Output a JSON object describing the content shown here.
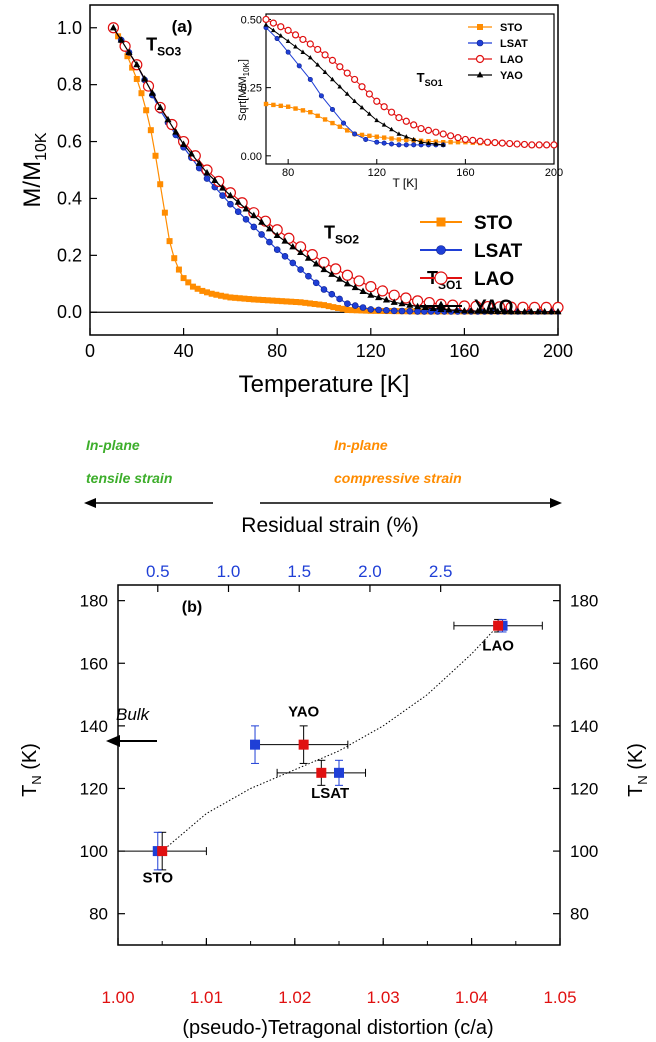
{
  "chart_data": [
    {
      "panel": "(a)",
      "type": "line",
      "xlabel": "Temperature [K]",
      "ylabel": "M/M",
      "ylabel_sub": "10K",
      "xlim": [
        0,
        200
      ],
      "ylim": [
        -0.08,
        1.08
      ],
      "xticks": [
        "0",
        "40",
        "80",
        "120",
        "160",
        "200"
      ],
      "yticks": [
        "0.0",
        "0.2",
        "0.4",
        "0.6",
        "0.8",
        "1.0"
      ],
      "zero_line": true,
      "legend_position": "right",
      "annotations": [
        {
          "main": "T",
          "sub": "SO3",
          "x": 24,
          "y": 0.92
        },
        {
          "main": "T",
          "sub": "SO2",
          "x": 100,
          "y": 0.26
        },
        {
          "main": "T",
          "sub": "SO1",
          "x": 144,
          "y": 0.1
        }
      ],
      "series": [
        {
          "name": "STO",
          "color": "#ff8c00",
          "marker": "square",
          "x": [
            10,
            12,
            14,
            16,
            18,
            20,
            22,
            24,
            26,
            28,
            30,
            32,
            34,
            36,
            38,
            40,
            44,
            48,
            52,
            56,
            60,
            70,
            80,
            90,
            100,
            104,
            108,
            110,
            120,
            140,
            160,
            180,
            200
          ],
          "y": [
            1.0,
            0.97,
            0.94,
            0.9,
            0.86,
            0.82,
            0.77,
            0.71,
            0.64,
            0.55,
            0.45,
            0.35,
            0.25,
            0.19,
            0.15,
            0.12,
            0.09,
            0.075,
            0.065,
            0.058,
            0.052,
            0.045,
            0.04,
            0.035,
            0.025,
            0.018,
            0.012,
            0.008,
            0.005,
            0.003,
            0.003,
            0.003,
            0.003
          ]
        },
        {
          "name": "LSAT",
          "color": "#1f3fd6",
          "marker": "circle",
          "x": [
            10,
            20,
            30,
            40,
            50,
            60,
            70,
            80,
            90,
            100,
            110,
            120,
            130,
            140,
            160,
            180,
            200
          ],
          "y": [
            1.0,
            0.87,
            0.71,
            0.58,
            0.47,
            0.38,
            0.3,
            0.22,
            0.15,
            0.08,
            0.03,
            0.01,
            0.005,
            0.003,
            0.003,
            0.003,
            0.003
          ]
        },
        {
          "name": "LAO",
          "color": "#e01010",
          "marker": "open-circle",
          "x": [
            10,
            20,
            30,
            40,
            50,
            60,
            70,
            80,
            90,
            100,
            110,
            120,
            130,
            140,
            150,
            160,
            170,
            180,
            190,
            200
          ],
          "y": [
            1.0,
            0.87,
            0.72,
            0.6,
            0.5,
            0.42,
            0.35,
            0.29,
            0.23,
            0.175,
            0.13,
            0.09,
            0.06,
            0.04,
            0.028,
            0.022,
            0.02,
            0.018,
            0.017,
            0.017
          ]
        },
        {
          "name": "YAO",
          "color": "#000000",
          "marker": "triangle",
          "x": [
            10,
            20,
            30,
            40,
            50,
            60,
            70,
            80,
            90,
            100,
            110,
            120,
            130,
            140,
            150,
            160,
            180,
            200
          ],
          "y": [
            1.0,
            0.87,
            0.72,
            0.59,
            0.49,
            0.41,
            0.34,
            0.27,
            0.21,
            0.15,
            0.1,
            0.06,
            0.035,
            0.02,
            0.01,
            0.005,
            0.002,
            0.002
          ]
        }
      ]
    },
    {
      "panel": "inset",
      "type": "line",
      "xlabel": "T [K]",
      "ylabel": "Sqrt[M/M",
      "ylabel_sub": "10K",
      "ylabel_tail": "]",
      "xlim": [
        70,
        200
      ],
      "ylim": [
        -0.03,
        0.52
      ],
      "xticks": [
        "80",
        "120",
        "160",
        "200"
      ],
      "yticks": [
        "0.00",
        "0.25",
        "0.50"
      ],
      "legend_position": "top-right",
      "annotations": [
        {
          "main": "T",
          "sub": "SO1",
          "x": 138,
          "y": 0.27
        }
      ],
      "series": [
        {
          "name": "STO",
          "color": "#ff8c00",
          "marker": "square",
          "x": [
            70,
            80,
            90,
            100,
            110,
            120,
            130,
            140,
            150,
            160,
            170,
            180,
            190,
            200
          ],
          "y": [
            0.19,
            0.18,
            0.16,
            0.12,
            0.08,
            0.07,
            0.06,
            0.055,
            0.05,
            0.05,
            0.045,
            0.045,
            0.04,
            0.04
          ]
        },
        {
          "name": "LSAT",
          "color": "#1f3fd6",
          "marker": "circle",
          "x": [
            70,
            75,
            80,
            85,
            90,
            95,
            100,
            105,
            110,
            115,
            120,
            130,
            140,
            150
          ],
          "y": [
            0.47,
            0.43,
            0.38,
            0.33,
            0.28,
            0.22,
            0.17,
            0.12,
            0.08,
            0.06,
            0.05,
            0.04,
            0.04,
            0.04
          ]
        },
        {
          "name": "LAO",
          "color": "#e01010",
          "marker": "open-circle",
          "x": [
            70,
            80,
            90,
            100,
            110,
            120,
            130,
            140,
            150,
            160,
            170,
            180,
            190,
            200
          ],
          "y": [
            0.5,
            0.46,
            0.41,
            0.35,
            0.28,
            0.2,
            0.14,
            0.1,
            0.08,
            0.06,
            0.05,
            0.045,
            0.04,
            0.04
          ]
        },
        {
          "name": "YAO",
          "color": "#000000",
          "marker": "triangle",
          "x": [
            70,
            80,
            90,
            100,
            110,
            120,
            130,
            140,
            150
          ],
          "y": [
            0.48,
            0.42,
            0.36,
            0.28,
            0.2,
            0.13,
            0.08,
            0.05,
            0.04
          ]
        }
      ]
    },
    {
      "panel": "(b)",
      "type": "scatter",
      "xlabel": "(pseudo-)Tetragonal distortion (c/a)",
      "xlabel_color": "#e01010",
      "top_xlabel": "Residual strain (%)",
      "top_xlabel_color": "#1f3fd6",
      "ylabel": "T",
      "ylabel_sub": "N",
      "ylabel_tail": " (K)",
      "xlim": [
        1.0,
        1.05
      ],
      "ylim": [
        70,
        185
      ],
      "xticks": [
        "1.00",
        "1.01",
        "1.02",
        "1.03",
        "1.04",
        "1.05"
      ],
      "top_xticks": [
        {
          "label": "0.5",
          "x": 1.0045
        },
        {
          "label": "1.0",
          "x": 1.0125
        },
        {
          "label": "1.5",
          "x": 1.0205
        },
        {
          "label": "2.0",
          "x": 1.0285
        },
        {
          "label": "2.5",
          "x": 1.0365
        }
      ],
      "yticks": [
        "80",
        "100",
        "120",
        "140",
        "160",
        "180"
      ],
      "red_points": [
        {
          "label": "STO",
          "x": 1.005,
          "y": 100,
          "xerr": 0.005,
          "yerr": 6
        },
        {
          "label": "YAO",
          "x": 1.021,
          "y": 134,
          "xerr": 0.005,
          "yerr": 6
        },
        {
          "label": "LSAT",
          "x": 1.023,
          "y": 125,
          "xerr": 0.005,
          "yerr": 4
        },
        {
          "label": "LAO",
          "x": 1.043,
          "y": 172,
          "xerr": 0.005,
          "yerr": 2
        }
      ],
      "blue_points": [
        {
          "x": 1.0045,
          "y": 100,
          "yerr": 6
        },
        {
          "x": 1.0155,
          "y": 134,
          "yerr": 6
        },
        {
          "x": 1.025,
          "y": 125,
          "yerr": 4
        },
        {
          "x": 1.0435,
          "y": 172,
          "yerr": 2
        }
      ],
      "fit_curve": {
        "x": [
          1.005,
          1.01,
          1.015,
          1.02,
          1.025,
          1.03,
          1.035,
          1.04,
          1.043
        ],
        "y": [
          100,
          112,
          120,
          126,
          132,
          140,
          150,
          163,
          172
        ]
      },
      "point_labels": [
        {
          "text": "STO",
          "x": 1.0045,
          "y": 90
        },
        {
          "text": "YAO",
          "x": 1.021,
          "y": 143
        },
        {
          "text": "LSAT",
          "x": 1.024,
          "y": 117
        },
        {
          "text": "LAO",
          "x": 1.043,
          "y": 164
        }
      ],
      "bulk": {
        "text": "Bulk",
        "y": 130
      },
      "strain_arrows": {
        "tensile": {
          "line1": "In-plane",
          "line2": "tensile strain",
          "color": "#3dae2b"
        },
        "compressive": {
          "line1": "In-plane",
          "line2": "compressive strain",
          "color": "#ff8c00"
        }
      }
    }
  ]
}
